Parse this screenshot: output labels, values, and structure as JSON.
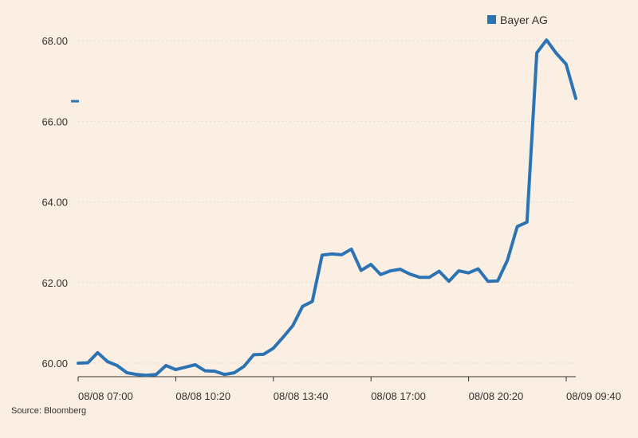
{
  "chart_data": {
    "type": "line",
    "title": "",
    "xlabel": "",
    "ylabel": "",
    "ylim": [
      59.7,
      68.0
    ],
    "grid": true,
    "legend_position": "top-right",
    "x_tick_labels": [
      "08/08 07:00",
      "08/08 10:20",
      "08/08 13:40",
      "08/08 17:00",
      "08/08 20:20",
      "08/09 09:40"
    ],
    "y_ticks": [
      60,
      62,
      64,
      66,
      68
    ],
    "y_tick_labels": [
      "60.00",
      "62.00",
      "64.00",
      "66.00",
      "68.00"
    ],
    "colors": {
      "series": "#2b73b3",
      "background": "#fbefe3",
      "grid": "#e2d9cf",
      "axis": "#33302e"
    },
    "series": [
      {
        "name": "Bayer AG",
        "values": [
          60.0,
          60.01,
          60.26,
          60.04,
          59.94,
          59.76,
          59.72,
          59.7,
          59.72,
          59.94,
          59.84,
          59.9,
          59.96,
          59.81,
          59.8,
          59.72,
          59.76,
          59.92,
          60.21,
          60.22,
          60.37,
          60.64,
          60.93,
          61.41,
          61.53,
          62.68,
          62.71,
          62.69,
          62.83,
          62.3,
          62.45,
          62.2,
          62.29,
          62.33,
          62.21,
          62.13,
          62.13,
          62.28,
          62.03,
          62.29,
          62.24,
          62.34,
          62.03,
          62.04,
          62.56,
          63.39,
          63.5,
          67.7,
          68.02,
          67.69,
          67.42,
          66.57
        ]
      }
    ]
  },
  "marker_value": 66.5,
  "source": "Source: Bloomberg"
}
